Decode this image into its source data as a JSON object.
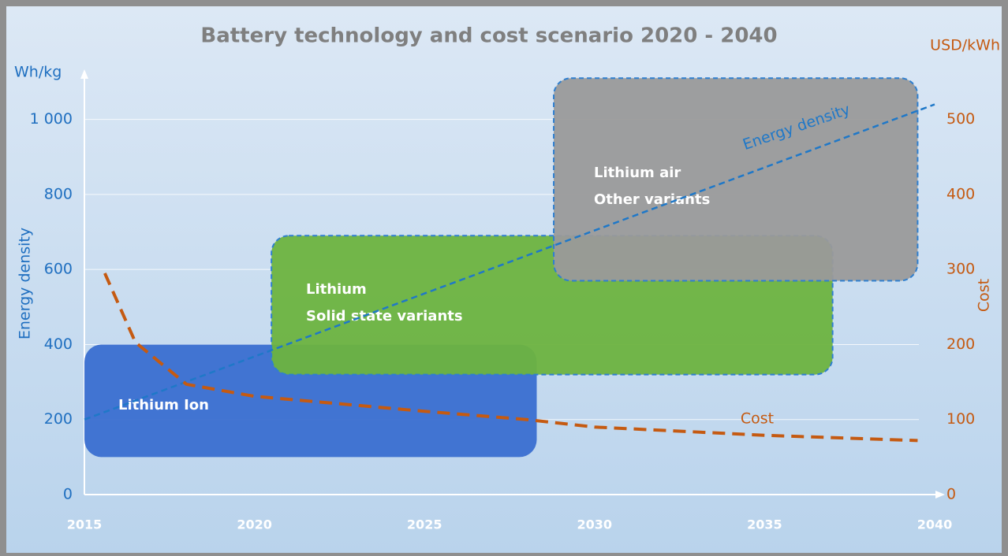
{
  "chart_data": {
    "type": "line",
    "title": "Battery technology and cost scenario 2020 - 2040",
    "y_label": "Energy density",
    "y_unit": "Wh/kg",
    "y2_label": "Cost",
    "y2_unit": "USD/kWh",
    "xlim": [
      2015,
      2040
    ],
    "xticks": [
      2015,
      2020,
      2025,
      2030,
      2035,
      2040
    ],
    "ylim": [
      0,
      1100
    ],
    "yticks": [
      0,
      200,
      400,
      600,
      800,
      {
        "value": 1000,
        "label": "1 000"
      }
    ],
    "y2lim": [
      0,
      550
    ],
    "y2ticks": [
      0,
      100,
      200,
      300,
      400,
      500
    ],
    "grid": true,
    "regions": [
      {
        "label": [
          "Lithium Ion"
        ],
        "x0": 2015,
        "x1": 2028.3,
        "y0": 100,
        "y1": 400,
        "color": "#3a6fd0"
      },
      {
        "label": [
          "Lithium",
          "Solid state variants"
        ],
        "x0": 2020.5,
        "x1": 2037,
        "y0": 320,
        "y1": 690,
        "color": "#6db33f"
      },
      {
        "label": [
          "Lithium air",
          "Other variants"
        ],
        "x0": 2028.8,
        "x1": 2039.5,
        "y0": 570,
        "y1": 1110,
        "color": "#9a9a9a"
      }
    ],
    "series": [
      {
        "name": "Energy density",
        "color": "#1f78c8",
        "x": [
          2015,
          2040
        ],
        "values": [
          200,
          1040
        ]
      },
      {
        "name": "Cost",
        "color": "#c55a11",
        "axis": "y2",
        "x": [
          2015.6,
          2016.5,
          2018,
          2020,
          2025,
          2028,
          2030,
          2035,
          2039.5
        ],
        "values": [
          295,
          203,
          147,
          131,
          111,
          100,
          90,
          79,
          72
        ]
      }
    ]
  }
}
